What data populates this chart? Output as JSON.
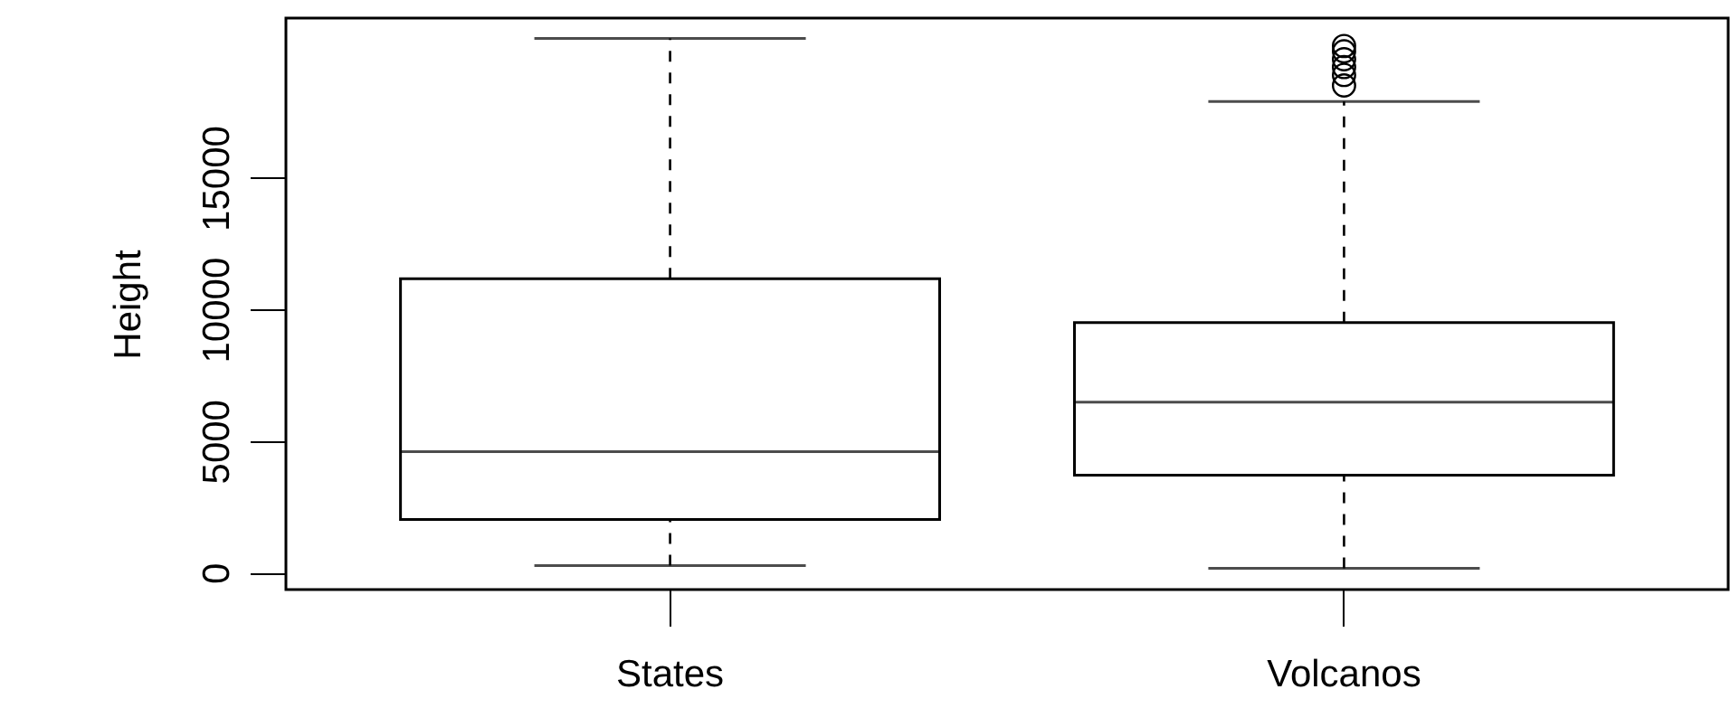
{
  "chart_data": {
    "type": "box",
    "ylabel": "Height",
    "categories": [
      "States",
      "Volcanos"
    ],
    "boxes": [
      {
        "low": 270,
        "q1": 2020,
        "median": 4600,
        "q3": 11160,
        "high": 20290
      },
      {
        "low": 170,
        "q1": 3700,
        "median": 6480,
        "q3": 9500,
        "high": 17890,
        "outliers": [
          18500,
          18900,
          19200,
          19500,
          19800,
          20000
        ]
      }
    ],
    "ylim": [
      -640,
      21060
    ],
    "yticks": [
      0,
      5000,
      10000,
      15000
    ]
  }
}
